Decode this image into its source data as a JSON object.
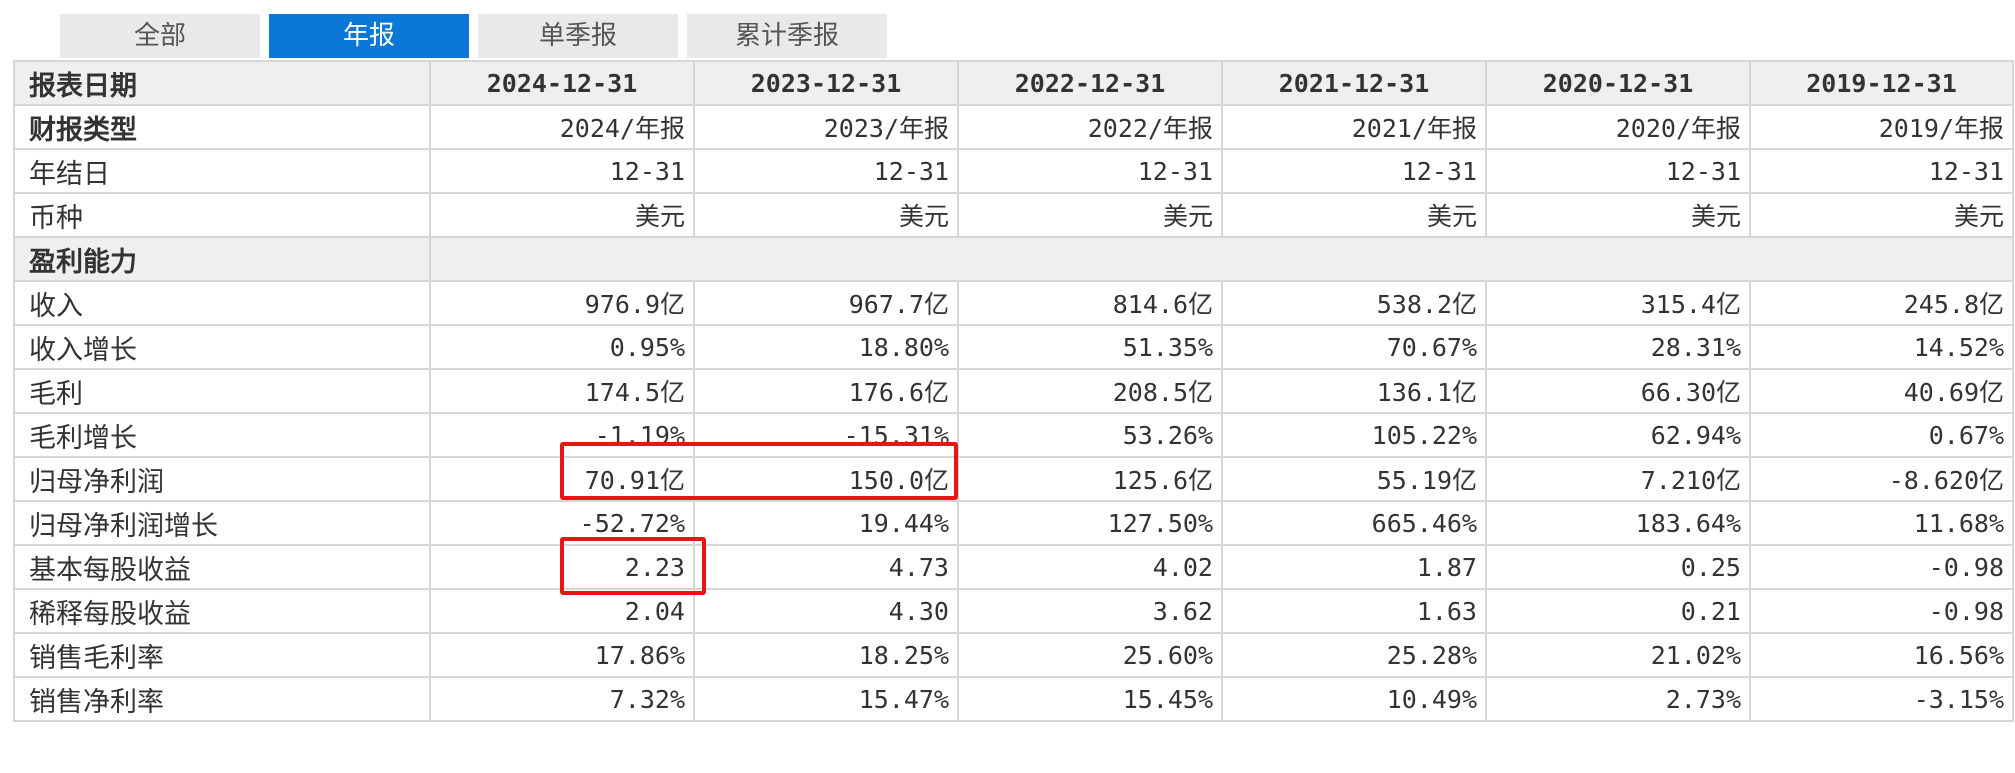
{
  "tabs": [
    {
      "label": "全部"
    },
    {
      "label": "年报"
    },
    {
      "label": "单季报"
    },
    {
      "label": "累计季报"
    }
  ],
  "header": {
    "label": "报表日期",
    "dates": [
      "2024-12-31",
      "2023-12-31",
      "2022-12-31",
      "2021-12-31",
      "2020-12-31",
      "2019-12-31"
    ]
  },
  "info_rows": [
    {
      "label": "财报类型",
      "values": [
        "2024/年报",
        "2023/年报",
        "2022/年报",
        "2021/年报",
        "2020/年报",
        "2019/年报"
      ]
    },
    {
      "label": "年结日",
      "values": [
        "12-31",
        "12-31",
        "12-31",
        "12-31",
        "12-31",
        "12-31"
      ]
    },
    {
      "label": "币种",
      "values": [
        "美元",
        "美元",
        "美元",
        "美元",
        "美元",
        "美元"
      ]
    }
  ],
  "section": {
    "label": "盈利能力"
  },
  "rows": [
    {
      "label": "收入",
      "values": [
        "976.9亿",
        "967.7亿",
        "814.6亿",
        "538.2亿",
        "315.4亿",
        "245.8亿"
      ]
    },
    {
      "label": "收入增长",
      "values": [
        "0.95%",
        "18.80%",
        "51.35%",
        "70.67%",
        "28.31%",
        "14.52%"
      ]
    },
    {
      "label": "毛利",
      "values": [
        "174.5亿",
        "176.6亿",
        "208.5亿",
        "136.1亿",
        "66.30亿",
        "40.69亿"
      ]
    },
    {
      "label": "毛利增长",
      "values": [
        "-1.19%",
        "-15.31%",
        "53.26%",
        "105.22%",
        "62.94%",
        "0.67%"
      ]
    },
    {
      "label": "归母净利润",
      "values": [
        "70.91亿",
        "150.0亿",
        "125.6亿",
        "55.19亿",
        "7.210亿",
        "-8.620亿"
      ]
    },
    {
      "label": "归母净利润增长",
      "values": [
        "-52.72%",
        "19.44%",
        "127.50%",
        "665.46%",
        "183.64%",
        "11.68%"
      ]
    },
    {
      "label": "基本每股收益",
      "values": [
        "2.23",
        "4.73",
        "4.02",
        "1.87",
        "0.25",
        "-0.98"
      ]
    },
    {
      "label": "稀释每股收益",
      "values": [
        "2.04",
        "4.30",
        "3.62",
        "1.63",
        "0.21",
        "-0.98"
      ]
    },
    {
      "label": "销售毛利率",
      "values": [
        "17.86%",
        "18.25%",
        "25.60%",
        "25.28%",
        "21.02%",
        "16.56%"
      ]
    },
    {
      "label": "销售净利率",
      "values": [
        "7.32%",
        "15.47%",
        "15.45%",
        "10.49%",
        "2.73%",
        "-3.15%"
      ]
    }
  ],
  "colors": {
    "accent": "#0b78d8",
    "highlight": "#e81515",
    "gray_row": "#efefef"
  }
}
